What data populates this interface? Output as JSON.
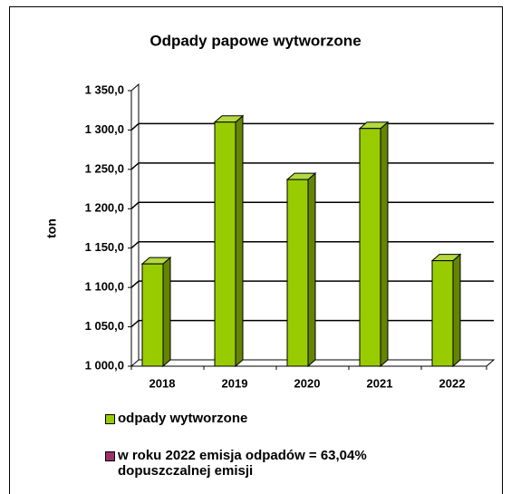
{
  "chart_data": {
    "type": "bar3d",
    "title": "Odpady papowe wytworzone",
    "ylabel": "ton",
    "categories": [
      "2018",
      "2019",
      "2020",
      "2021",
      "2022"
    ],
    "series": [
      {
        "name": "odpady wytworzone",
        "color": "#99cc00",
        "values": [
          1130,
          1310,
          1237,
          1302,
          1134
        ]
      }
    ],
    "legend_notes": [
      {
        "text": "w roku 2022 emisja odpadów = 63,04% dopuszczalnej emisji",
        "color": "#993366"
      }
    ],
    "ylim": [
      1000,
      1350
    ],
    "yticks": [
      {
        "value": 1000,
        "label": "1 000,0"
      },
      {
        "value": 1050,
        "label": "1 050,0"
      },
      {
        "value": 1100,
        "label": "1 100,0"
      },
      {
        "value": 1150,
        "label": "1 150,0"
      },
      {
        "value": 1200,
        "label": "1 200,0"
      },
      {
        "value": 1250,
        "label": "1 250,0"
      },
      {
        "value": 1300,
        "label": "1 300,0"
      },
      {
        "value": 1350,
        "label": "1 350,0"
      }
    ],
    "grid": true
  }
}
